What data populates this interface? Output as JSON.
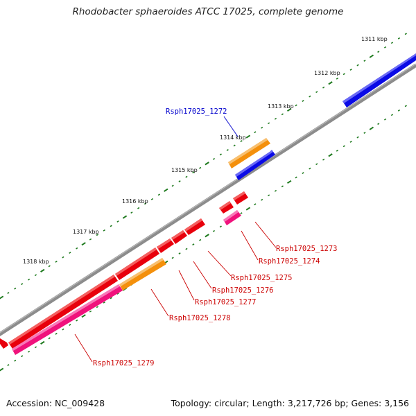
{
  "title": "Rhodobacter sphaeroides ATCC 17025, complete genome",
  "footer": {
    "accession": "Accession: NC_009428",
    "summary": "Topology: circular; Length: 3,217,726 bp; Genes: 3,156"
  },
  "colors": {
    "backbone": "#8c8c8c",
    "tick": "#1e7a1e",
    "gene_red": "#e8000c",
    "gene_orange": "#f4900c",
    "gene_pink": "#f0127c",
    "gene_blue": "#0a0ae6",
    "label_red": "#cc0000",
    "label_blue": "#0000cc"
  },
  "scale_labels": [
    {
      "kbp": 1311,
      "text": "1311 kbp"
    },
    {
      "kbp": 1312,
      "text": "1312 kbp"
    },
    {
      "kbp": 1313,
      "text": "1313 kbp"
    },
    {
      "kbp": 1314,
      "text": "1314 kbp"
    },
    {
      "kbp": 1315,
      "text": "1315 kbp"
    },
    {
      "kbp": 1316,
      "text": "1316 kbp"
    },
    {
      "kbp": 1317,
      "text": "1317 kbp"
    },
    {
      "kbp": 1318,
      "text": "1318 kbp"
    }
  ],
  "genes": [
    {
      "name": "Rsph17025_1272",
      "color": "gene_blue"
    },
    {
      "name": "Rsph17025_1273",
      "color": "gene_red"
    },
    {
      "name": "Rsph17025_1274",
      "color": "gene_pink"
    },
    {
      "name": "Rsph17025_1275",
      "color": "gene_red"
    },
    {
      "name": "Rsph17025_1276",
      "color": "gene_red"
    },
    {
      "name": "Rsph17025_1277",
      "color": "gene_red"
    },
    {
      "name": "Rsph17025_1278",
      "color": "gene_orange"
    },
    {
      "name": "Rsph17025_1279",
      "color": "gene_pink"
    }
  ]
}
